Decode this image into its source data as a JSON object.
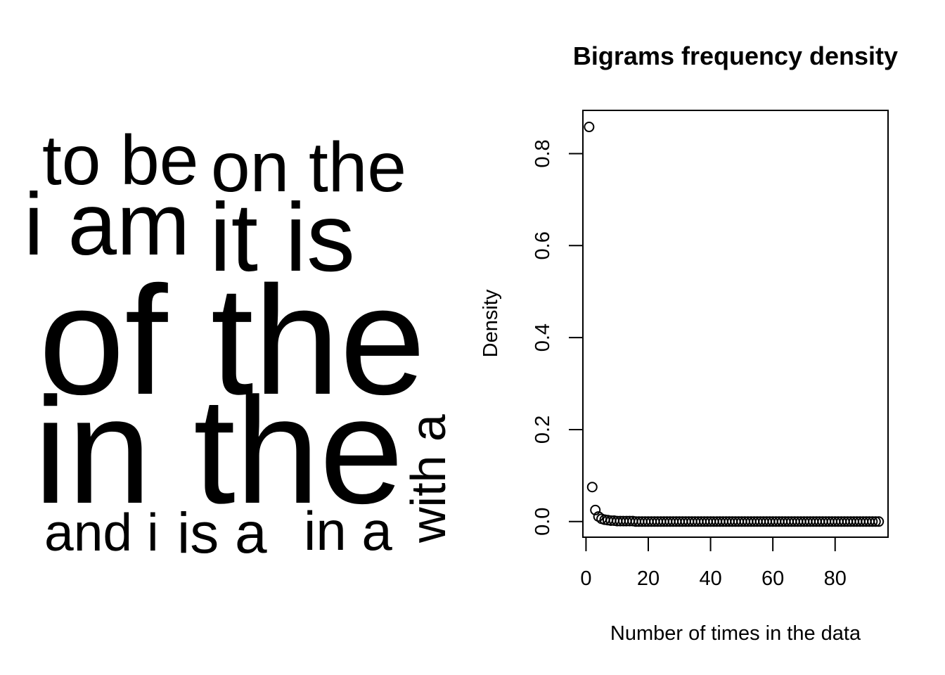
{
  "wordcloud": {
    "words": [
      "to be",
      "on the",
      "i am",
      "it is",
      "of the",
      "in the",
      "with a",
      "and i",
      "is a",
      "in a"
    ]
  },
  "chart_data": {
    "type": "scatter",
    "title": "Bigrams frequency density",
    "xlabel": "Number of times in the data",
    "ylabel": "Density",
    "xlim": [
      -1,
      97
    ],
    "ylim": [
      -0.034,
      0.894
    ],
    "xticks": [
      0,
      20,
      40,
      60,
      80
    ],
    "xtick_labels": [
      "0",
      "20",
      "40",
      "60",
      "80"
    ],
    "yticks": [
      0.0,
      0.2,
      0.4,
      0.6,
      0.8
    ],
    "ytick_labels": [
      "0.0",
      "0.2",
      "0.4",
      "0.6",
      "0.8"
    ],
    "grid": false,
    "marker": "open-circle",
    "color": "#000000",
    "x": [
      1,
      2,
      3,
      4,
      5,
      6,
      7,
      8,
      9,
      10,
      11,
      12,
      13,
      14,
      15,
      16,
      17,
      18,
      19,
      20,
      21,
      22,
      23,
      24,
      25,
      26,
      27,
      28,
      29,
      30,
      31,
      32,
      33,
      34,
      35,
      36,
      37,
      38,
      39,
      40,
      41,
      42,
      43,
      44,
      45,
      46,
      47,
      48,
      49,
      50,
      51,
      52,
      53,
      54,
      55,
      56,
      57,
      58,
      59,
      60,
      61,
      62,
      63,
      64,
      65,
      66,
      67,
      68,
      69,
      70,
      71,
      72,
      73,
      74,
      75,
      76,
      77,
      78,
      79,
      80,
      81,
      82,
      83,
      84,
      85,
      86,
      87,
      88,
      89,
      90,
      91,
      92,
      93,
      94
    ],
    "y": [
      0.858,
      0.075,
      0.025,
      0.011,
      0.006,
      0.004,
      0.003,
      0.002,
      0.002,
      0.001,
      0.001,
      0.001,
      0.001,
      0.001,
      0.001,
      0,
      0,
      0,
      0,
      0,
      0,
      0,
      0,
      0,
      0,
      0,
      0,
      0,
      0,
      0,
      0,
      0,
      0,
      0,
      0,
      0,
      0,
      0,
      0,
      0,
      0,
      0,
      0,
      0,
      0,
      0,
      0,
      0,
      0,
      0,
      0,
      0,
      0,
      0,
      0,
      0,
      0,
      0,
      0,
      0,
      0,
      0,
      0,
      0,
      0,
      0,
      0,
      0,
      0,
      0,
      0,
      0,
      0,
      0,
      0,
      0,
      0,
      0,
      0,
      0,
      0,
      0,
      0,
      0,
      0,
      0,
      0,
      0,
      0,
      0,
      0,
      0,
      0,
      0
    ]
  }
}
